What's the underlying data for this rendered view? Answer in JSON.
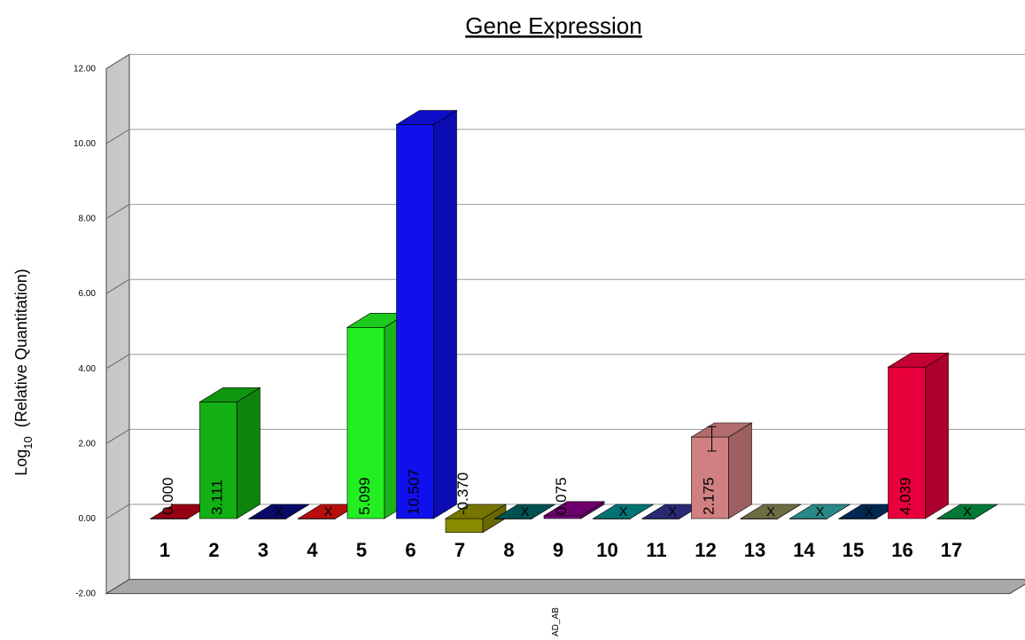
{
  "chart_data": {
    "type": "bar",
    "title": "Gene Expression",
    "ylabel_prefix": "Log",
    "ylabel_sub": "10",
    "ylabel_rest": "(Relative Quantitation)",
    "xlabel": "AD_AB",
    "ylim": [
      -2,
      12
    ],
    "yticks": [
      "-2.00",
      "0.00",
      "2.00",
      "4.00",
      "6.00",
      "8.00",
      "10.00",
      "12.00"
    ],
    "grid": true,
    "categories": [
      "1",
      "2",
      "3",
      "4",
      "5",
      "6",
      "7",
      "8",
      "9",
      "10",
      "11",
      "12",
      "13",
      "14",
      "15",
      "16",
      "17"
    ],
    "values": [
      0.0,
      3.111,
      null,
      null,
      5.099,
      10.507,
      -0.37,
      null,
      0.075,
      null,
      null,
      2.175,
      null,
      null,
      null,
      4.039,
      null
    ],
    "value_labels": [
      "0.000",
      "3.111",
      "X",
      "X",
      "5.099",
      "10.507",
      "-0.370",
      "X",
      "0.075",
      "X",
      "X",
      "2.175",
      "X",
      "X",
      "X",
      "4.039",
      "X"
    ],
    "colors": [
      "#b00018",
      "#12b012",
      "#0a0a7a",
      "#d81010",
      "#22ee22",
      "#1010ee",
      "#8a8a00",
      "#006060",
      "#800080",
      "#008888",
      "#303088",
      "#d08080",
      "#808050",
      "#30a0a0",
      "#003060",
      "#e8003c",
      "#009040"
    ],
    "error_bars": [
      {
        "index": 11,
        "low": 1.8,
        "high": 2.45
      }
    ]
  }
}
